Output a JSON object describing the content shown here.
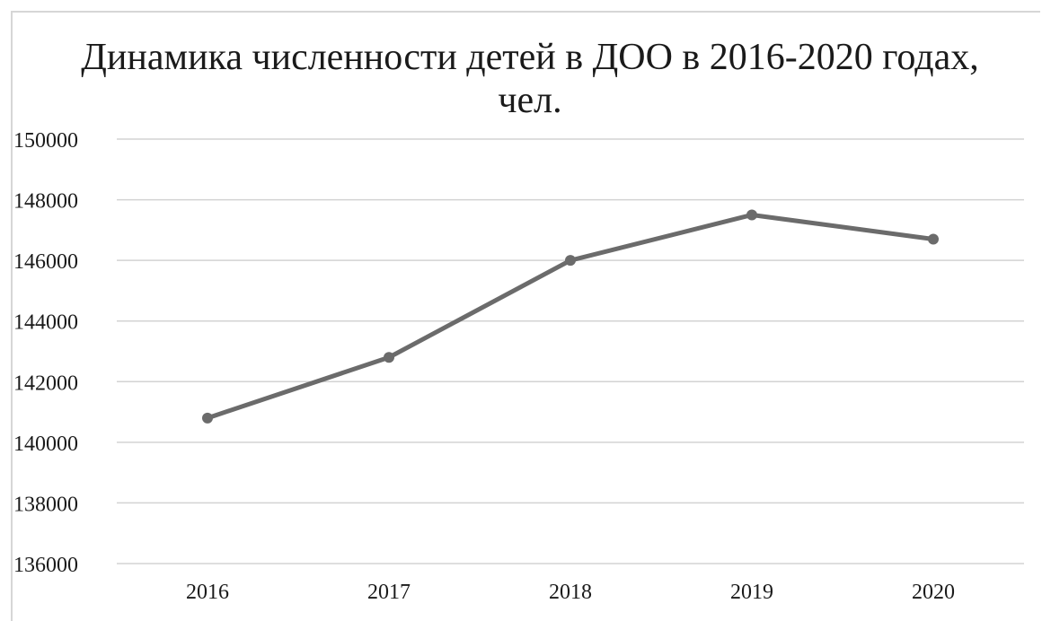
{
  "chart_data": {
    "type": "line",
    "title": "Динамика численности детей в ДОО в 2016-2020 годах,\nчел.",
    "categories": [
      "2016",
      "2017",
      "2018",
      "2019",
      "2020"
    ],
    "series": [
      {
        "values": [
          140800,
          142800,
          146000,
          147500,
          146700
        ]
      }
    ],
    "y_ticks": [
      "150000",
      "148000",
      "146000",
      "144000",
      "142000",
      "140000",
      "138000",
      "136000"
    ],
    "ylim": [
      136000,
      150000
    ],
    "xlabel": "",
    "ylabel": "",
    "grid": true,
    "legend": "none",
    "line_color": "#6b6b6b",
    "grid_color": "#d3d3d3"
  }
}
